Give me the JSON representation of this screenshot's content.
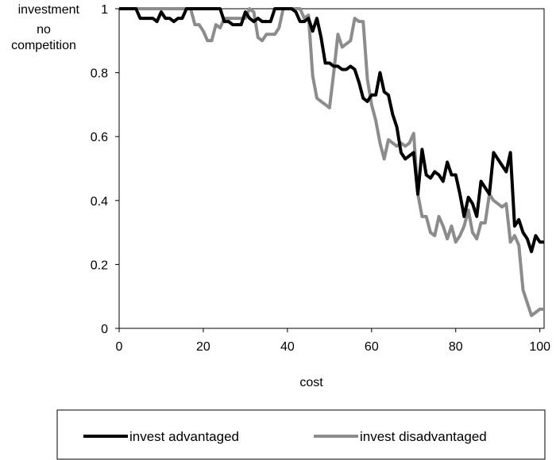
{
  "chart_data": {
    "type": "line",
    "xlabel": "cost",
    "ylabel_lines": [
      "investment",
      "no",
      "competition"
    ],
    "xlim": [
      0,
      101
    ],
    "ylim": [
      0,
      1
    ],
    "xticks": [
      0,
      20,
      40,
      60,
      80,
      100
    ],
    "xtick_labels": [
      "0",
      "20",
      "40",
      "60",
      "80",
      "100"
    ],
    "yticks": [
      0,
      0.2,
      0.4,
      0.6,
      0.8,
      1
    ],
    "ytick_labels": [
      "0",
      "0.2",
      "0.4",
      "0.6",
      "0.8",
      "1"
    ],
    "grid": false,
    "legend_position": "bottom",
    "series": [
      {
        "name": "invest advantaged",
        "color": "#000000",
        "x": [
          0,
          1,
          2,
          3,
          4,
          5,
          6,
          7,
          8,
          9,
          10,
          11,
          12,
          13,
          14,
          15,
          16,
          17,
          18,
          19,
          20,
          21,
          22,
          23,
          24,
          25,
          26,
          27,
          28,
          29,
          30,
          31,
          32,
          33,
          34,
          35,
          36,
          37,
          38,
          39,
          40,
          41,
          42,
          43,
          44,
          45,
          46,
          47,
          48,
          49,
          50,
          51,
          52,
          53,
          54,
          55,
          56,
          57,
          58,
          59,
          60,
          61,
          62,
          63,
          64,
          65,
          66,
          67,
          68,
          69,
          70,
          71,
          72,
          73,
          74,
          75,
          76,
          77,
          78,
          79,
          80,
          81,
          82,
          83,
          84,
          85,
          86,
          87,
          88,
          89,
          90,
          91,
          92,
          93,
          94,
          95,
          96,
          97,
          98,
          99,
          100,
          101
        ],
        "y": [
          1,
          1,
          1,
          1,
          1,
          0.97,
          0.97,
          0.97,
          0.97,
          0.96,
          0.99,
          0.97,
          0.97,
          0.96,
          0.97,
          0.97,
          1,
          1,
          1,
          1,
          1,
          1,
          1,
          1,
          1,
          0.96,
          0.96,
          0.95,
          0.95,
          0.95,
          0.99,
          0.97,
          0.96,
          0.97,
          0.96,
          0.96,
          0.96,
          1,
          1,
          1,
          1,
          1,
          0.99,
          0.96,
          0.96,
          0.97,
          0.93,
          0.97,
          0.91,
          0.83,
          0.83,
          0.82,
          0.82,
          0.81,
          0.81,
          0.82,
          0.81,
          0.77,
          0.72,
          0.71,
          0.73,
          0.73,
          0.8,
          0.74,
          0.73,
          0.67,
          0.63,
          0.55,
          0.53,
          0.54,
          0.55,
          0.42,
          0.56,
          0.48,
          0.47,
          0.49,
          0.48,
          0.46,
          0.52,
          0.48,
          0.48,
          0.42,
          0.35,
          0.41,
          0.39,
          0.35,
          0.46,
          0.44,
          0.42,
          0.55,
          0.53,
          0.51,
          0.49,
          0.55,
          0.32,
          0.34,
          0.3,
          0.28,
          0.24,
          0.29,
          0.27,
          0.27
        ]
      },
      {
        "name": "invest disadvantaged",
        "color": "#8c8c8c",
        "x": [
          0,
          1,
          2,
          3,
          4,
          5,
          6,
          7,
          8,
          9,
          10,
          11,
          12,
          13,
          14,
          15,
          16,
          17,
          18,
          19,
          20,
          21,
          22,
          23,
          24,
          25,
          26,
          27,
          28,
          29,
          30,
          31,
          32,
          33,
          34,
          35,
          36,
          37,
          38,
          39,
          40,
          41,
          42,
          43,
          44,
          45,
          46,
          47,
          48,
          49,
          50,
          51,
          52,
          53,
          54,
          55,
          56,
          57,
          58,
          59,
          60,
          61,
          62,
          63,
          64,
          65,
          66,
          67,
          68,
          69,
          70,
          71,
          72,
          73,
          74,
          75,
          76,
          77,
          78,
          79,
          80,
          81,
          82,
          83,
          84,
          85,
          86,
          87,
          88,
          89,
          90,
          91,
          92,
          93,
          94,
          95,
          96,
          97,
          98,
          99,
          100,
          101
        ],
        "y": [
          1,
          1,
          1,
          1,
          1,
          1,
          1,
          1,
          1,
          1,
          1,
          1,
          1,
          1,
          1,
          1,
          1,
          1,
          0.95,
          0.95,
          0.93,
          0.9,
          0.9,
          0.95,
          0.94,
          0.97,
          0.97,
          0.97,
          0.97,
          0.97,
          0.97,
          1,
          0.99,
          0.91,
          0.9,
          0.92,
          0.92,
          0.92,
          0.94,
          1,
          1,
          1,
          1,
          1,
          0.97,
          0.98,
          0.79,
          0.72,
          0.71,
          0.7,
          0.69,
          0.8,
          0.92,
          0.88,
          0.89,
          0.9,
          0.97,
          0.96,
          0.96,
          0.78,
          0.7,
          0.65,
          0.58,
          0.53,
          0.59,
          0.58,
          0.57,
          0.58,
          0.57,
          0.58,
          0.61,
          0.42,
          0.35,
          0.35,
          0.3,
          0.29,
          0.35,
          0.32,
          0.28,
          0.32,
          0.27,
          0.29,
          0.32,
          0.37,
          0.3,
          0.28,
          0.33,
          0.33,
          0.42,
          0.4,
          0.39,
          0.38,
          0.39,
          0.27,
          0.29,
          0.26,
          0.12,
          0.08,
          0.04,
          0.05,
          0.06,
          0.06
        ]
      }
    ]
  }
}
